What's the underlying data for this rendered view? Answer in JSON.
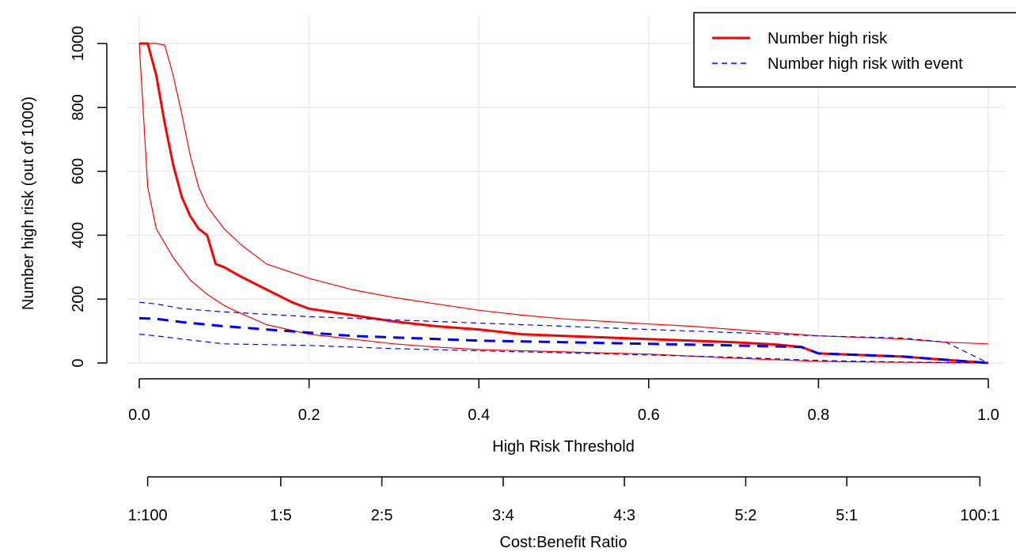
{
  "chart_data": {
    "type": "line",
    "title": "",
    "xlabel": "High Risk Threshold",
    "ylabel": "Number high risk (out of 1000)",
    "secondary_xlabel": "Cost:Benefit Ratio",
    "xlim": [
      0,
      1
    ],
    "ylim": [
      0,
      1000
    ],
    "x_ticks": [
      0.0,
      0.2,
      0.4,
      0.6,
      0.8,
      1.0
    ],
    "x_tick_labels": [
      "0.0",
      "0.2",
      "0.4",
      "0.6",
      "0.8",
      "1.0"
    ],
    "y_ticks": [
      0,
      200,
      400,
      600,
      800,
      1000
    ],
    "y_tick_labels": [
      "0",
      "200",
      "400",
      "600",
      "800",
      "1000"
    ],
    "secondary_axis": {
      "label": "Cost:Benefit Ratio",
      "ticks": [
        {
          "x": 0.0099,
          "label": "1:100"
        },
        {
          "x": 0.1667,
          "label": "1:5"
        },
        {
          "x": 0.2857,
          "label": "2:5"
        },
        {
          "x": 0.4286,
          "label": "3:4"
        },
        {
          "x": 0.5714,
          "label": "4:3"
        },
        {
          "x": 0.7143,
          "label": "5:2"
        },
        {
          "x": 0.8333,
          "label": "5:1"
        },
        {
          "x": 0.9901,
          "label": "100:1"
        }
      ]
    },
    "grid": true,
    "legend_position": "top-right",
    "legend": [
      {
        "label": "Number high risk",
        "color": "#ff0000",
        "style": "solid"
      },
      {
        "label": "Number high risk with event",
        "color": "#0000ff",
        "style": "dashed"
      }
    ],
    "series": [
      {
        "name": "Number high risk",
        "color": "#ff0000",
        "style": "solid",
        "width": 3,
        "x": [
          0.0,
          0.01,
          0.02,
          0.03,
          0.04,
          0.05,
          0.06,
          0.07,
          0.08,
          0.09,
          0.1,
          0.12,
          0.15,
          0.18,
          0.2,
          0.25,
          0.3,
          0.35,
          0.4,
          0.45,
          0.5,
          0.55,
          0.6,
          0.65,
          0.7,
          0.75,
          0.78,
          0.8,
          0.85,
          0.9,
          0.95,
          1.0
        ],
        "y": [
          1000,
          1000,
          900,
          750,
          620,
          520,
          460,
          420,
          400,
          310,
          300,
          270,
          230,
          190,
          170,
          150,
          130,
          115,
          105,
          90,
          85,
          80,
          75,
          70,
          65,
          58,
          50,
          30,
          25,
          20,
          10,
          0
        ]
      },
      {
        "name": "",
        "color": "#ff0000",
        "style": "solid",
        "width": 1.2,
        "x": [
          0.0,
          0.01,
          0.02,
          0.03,
          0.04,
          0.05,
          0.06,
          0.07,
          0.08,
          0.1,
          0.12,
          0.15,
          0.2,
          0.25,
          0.3,
          0.35,
          0.4,
          0.45,
          0.5,
          0.55,
          0.6,
          0.65,
          0.7,
          0.75,
          0.8,
          0.85,
          0.9,
          0.95,
          1.0
        ],
        "y": [
          1000,
          1000,
          1000,
          995,
          900,
          780,
          650,
          550,
          490,
          420,
          370,
          310,
          265,
          230,
          205,
          185,
          165,
          150,
          138,
          130,
          122,
          115,
          105,
          95,
          85,
          80,
          75,
          65,
          60
        ]
      },
      {
        "name": "",
        "color": "#ff0000",
        "style": "solid",
        "width": 1.2,
        "x": [
          0.0,
          0.01,
          0.02,
          0.04,
          0.06,
          0.08,
          0.1,
          0.12,
          0.15,
          0.2,
          0.25,
          0.3,
          0.35,
          0.4,
          0.5,
          0.6,
          0.7,
          0.8,
          0.9,
          1.0
        ],
        "y": [
          1000,
          550,
          420,
          330,
          260,
          215,
          180,
          155,
          120,
          90,
          75,
          60,
          50,
          42,
          35,
          28,
          15,
          5,
          2,
          0
        ]
      },
      {
        "name": "Number high risk with event",
        "color": "#0000ff",
        "style": "dashed",
        "width": 3,
        "x": [
          0.0,
          0.02,
          0.05,
          0.1,
          0.15,
          0.2,
          0.25,
          0.3,
          0.4,
          0.5,
          0.6,
          0.7,
          0.78,
          0.8,
          0.85,
          0.9,
          0.95,
          1.0
        ],
        "y": [
          140,
          138,
          128,
          115,
          105,
          95,
          85,
          80,
          70,
          65,
          60,
          55,
          50,
          30,
          25,
          20,
          10,
          0
        ]
      },
      {
        "name": "",
        "color": "#0000ff",
        "style": "dashed",
        "width": 1.2,
        "x": [
          0.0,
          0.02,
          0.05,
          0.1,
          0.2,
          0.3,
          0.4,
          0.5,
          0.6,
          0.7,
          0.8,
          0.9,
          0.95,
          1.0
        ],
        "y": [
          190,
          185,
          170,
          160,
          145,
          135,
          125,
          115,
          105,
          95,
          85,
          78,
          65,
          0
        ]
      },
      {
        "name": "",
        "color": "#0000ff",
        "style": "dashed",
        "width": 1.2,
        "x": [
          0.0,
          0.02,
          0.05,
          0.1,
          0.2,
          0.3,
          0.4,
          0.5,
          0.6,
          0.7,
          0.8,
          0.9,
          1.0
        ],
        "y": [
          90,
          85,
          75,
          60,
          55,
          45,
          38,
          32,
          25,
          18,
          8,
          3,
          0
        ]
      }
    ]
  }
}
